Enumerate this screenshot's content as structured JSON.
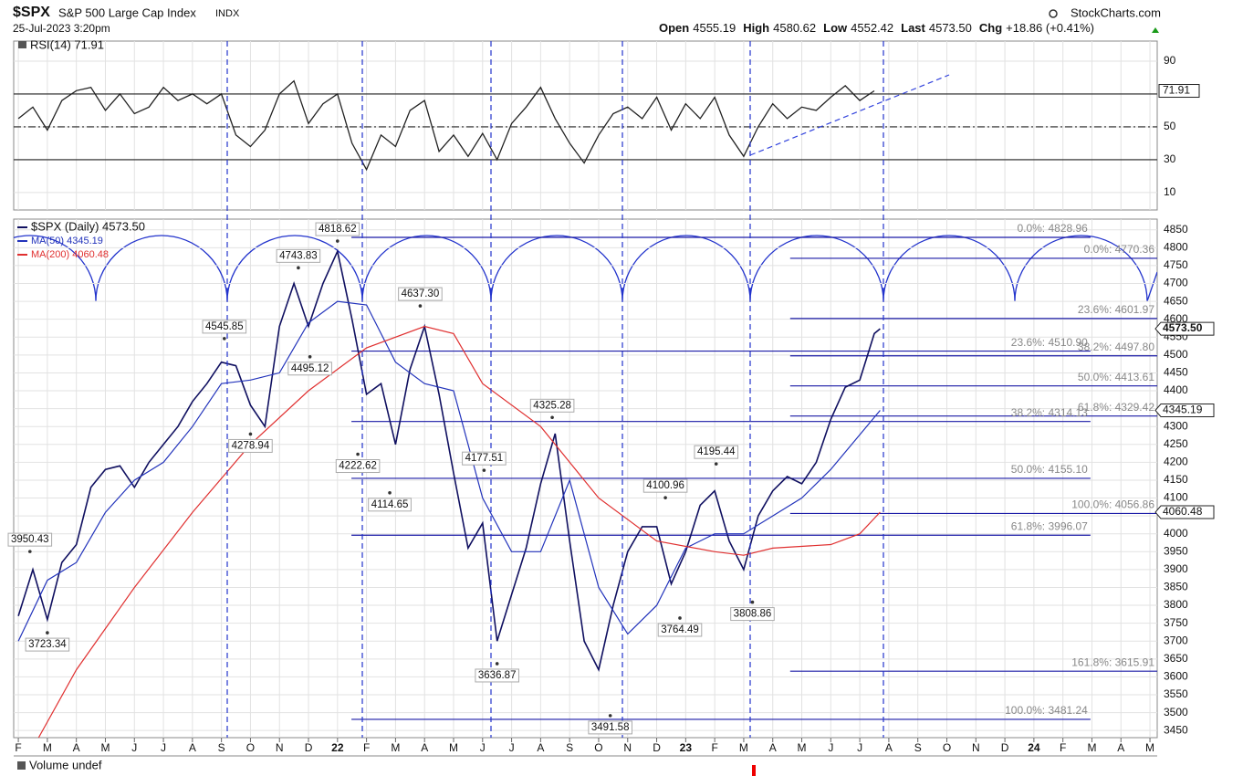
{
  "header": {
    "symbol": "$SPX",
    "name": "S&P 500 Large Cap Index",
    "exchange": "INDX",
    "source": "StockCharts.com",
    "timestamp": "25-Jul-2023 3:20pm",
    "quote": [
      {
        "label": "Open",
        "value": "4555.19"
      },
      {
        "label": "High",
        "value": "4580.62"
      },
      {
        "label": "Low",
        "value": "4552.42"
      },
      {
        "label": "Last",
        "value": "4573.50"
      },
      {
        "label": "Chg",
        "value": "+18.86 (+0.41%)"
      }
    ],
    "volume_label": "Volume undef"
  },
  "chart_data": [
    {
      "type": "line",
      "title": "RSI(14) 71.91",
      "color": "#222222",
      "x": [
        0,
        0.5,
        1,
        1.5,
        2,
        2.5,
        3,
        3.5,
        4,
        4.5,
        5,
        5.5,
        6,
        6.5,
        7,
        7.5,
        8,
        8.5,
        9,
        9.5,
        10,
        10.5,
        11,
        11.5,
        12,
        12.5,
        13,
        13.5,
        14,
        14.5,
        15,
        15.5,
        16,
        16.5,
        17,
        17.5,
        18,
        18.5,
        19,
        19.5,
        20,
        20.5,
        21,
        21.5,
        22,
        22.5,
        23,
        23.5,
        24,
        24.5,
        25,
        25.5,
        26,
        26.5,
        27,
        27.5,
        28,
        28.5,
        29,
        29.5
      ],
      "values": [
        55,
        62,
        48,
        66,
        72,
        74,
        60,
        70,
        58,
        62,
        74,
        66,
        70,
        64,
        70,
        45,
        38,
        48,
        70,
        78,
        52,
        64,
        70,
        40,
        24,
        45,
        38,
        60,
        66,
        35,
        45,
        32,
        46,
        30,
        52,
        62,
        74,
        55,
        40,
        28,
        45,
        58,
        62,
        55,
        68,
        48,
        64,
        55,
        68,
        45,
        32,
        50,
        64,
        55,
        62,
        60,
        68,
        75,
        66,
        71.91
      ],
      "xlim": [
        -0.16,
        39.25
      ],
      "ylim": [
        -0.6,
        102.2
      ],
      "yticks": [
        10,
        30,
        50,
        90
      ],
      "levels": [
        70,
        50,
        30
      ],
      "last_label": {
        "value": 71.91,
        "label": "71.91"
      }
    },
    {
      "type": "line",
      "legend": "top-left",
      "grid": true,
      "series": [
        {
          "name": "$SPX (Daily) 4573.50",
          "color": "#101060",
          "x": [
            0,
            0.5,
            1,
            1.5,
            2,
            2.5,
            3,
            3.5,
            4,
            4.5,
            5,
            5.5,
            6,
            6.5,
            7,
            7.5,
            8,
            8.5,
            9,
            9.5,
            10,
            10.5,
            11,
            11.5,
            12,
            12.5,
            13,
            13.5,
            14,
            14.5,
            15,
            15.5,
            16,
            16.5,
            17,
            17.5,
            18,
            18.5,
            19,
            19.5,
            20,
            20.5,
            21,
            21.5,
            22,
            22.5,
            23,
            23.5,
            24,
            24.5,
            25,
            25.5,
            26,
            26.5,
            27,
            27.5,
            28,
            28.5,
            29,
            29.5,
            29.7
          ],
          "values": [
            3770,
            3900,
            3760,
            3920,
            3970,
            4130,
            4180,
            4190,
            4130,
            4200,
            4250,
            4300,
            4370,
            4420,
            4480,
            4470,
            4360,
            4300,
            4580,
            4700,
            4580,
            4700,
            4790,
            4600,
            4390,
            4420,
            4250,
            4460,
            4580,
            4390,
            4170,
            3960,
            4030,
            3700,
            3830,
            3960,
            4140,
            4280,
            3980,
            3700,
            3620,
            3800,
            3950,
            4020,
            4020,
            3860,
            3950,
            4080,
            4120,
            3980,
            3900,
            4050,
            4120,
            4160,
            4140,
            4200,
            4320,
            4410,
            4430,
            4560,
            4573.5
          ]
        },
        {
          "name": "MA(50) 4345.19",
          "color": "#2233bb",
          "x": [
            0,
            1,
            2,
            3,
            4,
            5,
            6,
            7,
            8,
            9,
            10,
            11,
            12,
            13,
            14,
            15,
            16,
            17,
            18,
            19,
            20,
            21,
            22,
            23,
            24,
            25,
            26,
            27,
            28,
            29.7
          ],
          "values": [
            3700,
            3870,
            3920,
            4060,
            4150,
            4200,
            4300,
            4420,
            4430,
            4450,
            4590,
            4650,
            4640,
            4480,
            4420,
            4400,
            4100,
            3950,
            3950,
            4150,
            3850,
            3720,
            3800,
            3960,
            4000,
            4000,
            4050,
            4100,
            4180,
            4345.19
          ]
        },
        {
          "name": "MA(200) 4060.48",
          "color": "#e03030",
          "x": [
            0.7,
            2,
            4,
            6,
            8,
            10,
            12,
            14,
            15,
            16,
            18,
            20,
            22,
            24,
            25,
            26,
            28,
            29,
            29.7
          ],
          "values": [
            3430,
            3620,
            3850,
            4060,
            4250,
            4400,
            4520,
            4580,
            4560,
            4420,
            4300,
            4100,
            3980,
            3950,
            3940,
            3960,
            3970,
            4000,
            4060.48
          ]
        }
      ],
      "xlim": [
        -0.16,
        39.25
      ],
      "ylim": [
        3430,
        4880
      ],
      "yticks": [
        4850,
        4800,
        4750,
        4700,
        4650,
        4600,
        4550,
        4500,
        4450,
        4400,
        4350,
        4300,
        4250,
        4200,
        4150,
        4100,
        4050,
        4000,
        3950,
        3900,
        3850,
        3800,
        3750,
        3700,
        3650,
        3600,
        3550,
        3500,
        3450
      ],
      "xticks": [
        {
          "value": 0,
          "label": "F"
        },
        {
          "value": 1,
          "label": "M"
        },
        {
          "value": 2,
          "label": "A"
        },
        {
          "value": 3,
          "label": "M"
        },
        {
          "value": 4,
          "label": "J"
        },
        {
          "value": 5,
          "label": "J"
        },
        {
          "value": 6,
          "label": "A"
        },
        {
          "value": 7,
          "label": "S"
        },
        {
          "value": 8,
          "label": "O"
        },
        {
          "value": 9,
          "label": "N"
        },
        {
          "value": 10,
          "label": "D"
        },
        {
          "value": 11,
          "label": "22"
        },
        {
          "value": 12,
          "label": "F"
        },
        {
          "value": 13,
          "label": "M"
        },
        {
          "value": 14,
          "label": "A"
        },
        {
          "value": 15,
          "label": "M"
        },
        {
          "value": 16,
          "label": "J"
        },
        {
          "value": 17,
          "label": "J"
        },
        {
          "value": 18,
          "label": "A"
        },
        {
          "value": 19,
          "label": "S"
        },
        {
          "value": 20,
          "label": "O"
        },
        {
          "value": 21,
          "label": "N"
        },
        {
          "value": 22,
          "label": "D"
        },
        {
          "value": 23,
          "label": "23"
        },
        {
          "value": 24,
          "label": "F"
        },
        {
          "value": 25,
          "label": "M"
        },
        {
          "value": 26,
          "label": "A"
        },
        {
          "value": 27,
          "label": "M"
        },
        {
          "value": 28,
          "label": "J"
        },
        {
          "value": 29,
          "label": "J"
        },
        {
          "value": 30,
          "label": "A"
        },
        {
          "value": 31,
          "label": "S"
        },
        {
          "value": 32,
          "label": "O"
        },
        {
          "value": 33,
          "label": "N"
        },
        {
          "value": 34,
          "label": "D"
        },
        {
          "value": 35,
          "label": "24"
        },
        {
          "value": 36,
          "label": "F"
        },
        {
          "value": 37,
          "label": "M"
        },
        {
          "value": 38,
          "label": "A"
        },
        {
          "value": 39,
          "label": "M"
        }
      ],
      "annotations": [
        {
          "x": 0.4,
          "value": 3950.43,
          "label": "3950.43"
        },
        {
          "x": 1.0,
          "value": 3723.34,
          "label": "3723.34"
        },
        {
          "x": 7.1,
          "value": 4545.85,
          "label": "4545.85"
        },
        {
          "x": 8.0,
          "value": 4278.94,
          "label": "4278.94"
        },
        {
          "x": 9.65,
          "value": 4743.83,
          "label": "4743.83"
        },
        {
          "x": 10.05,
          "value": 4495.12,
          "label": "4495.12"
        },
        {
          "x": 11.0,
          "value": 4818.62,
          "label": "4818.62"
        },
        {
          "x": 11.7,
          "value": 4222.62,
          "label": "4222.62"
        },
        {
          "x": 12.8,
          "value": 4114.65,
          "label": "4114.65"
        },
        {
          "x": 13.85,
          "value": 4637.3,
          "label": "4637.30"
        },
        {
          "x": 16.05,
          "value": 4177.51,
          "label": "4177.51"
        },
        {
          "x": 16.5,
          "value": 3636.87,
          "label": "3636.87"
        },
        {
          "x": 18.4,
          "value": 4325.28,
          "label": "4325.28"
        },
        {
          "x": 20.4,
          "value": 3491.58,
          "label": "3491.58"
        },
        {
          "x": 22.3,
          "value": 4100.96,
          "label": "4100.96"
        },
        {
          "x": 22.8,
          "value": 3764.49,
          "label": "3764.49"
        },
        {
          "x": 24.05,
          "value": 4195.44,
          "label": "4195.44"
        },
        {
          "x": 25.3,
          "value": 3808.86,
          "label": "3808.86"
        }
      ],
      "fibonacci": [
        {
          "xspan": [
            11.48,
            36.95
          ],
          "levels": [
            {
              "value": 4828.96,
              "label": "0.0%: 4828.96"
            },
            {
              "value": 4510.9,
              "label": "23.6%: 4510.90"
            },
            {
              "value": 4314.13,
              "label": "38.2%: 4314.13"
            },
            {
              "value": 4155.1,
              "label": "50.0%: 4155.10"
            },
            {
              "value": 3996.07,
              "label": "61.8%: 3996.07"
            },
            {
              "value": 3481.24,
              "label": "100.0%: 3481.24"
            }
          ]
        },
        {
          "xspan": [
            26.6,
            39.25
          ],
          "levels": [
            {
              "value": 4770.36,
              "label": "0.0%: 4770.36"
            },
            {
              "value": 4601.97,
              "label": "23.6%: 4601.97"
            },
            {
              "value": 4497.8,
              "label": "38.2%: 4497.80"
            },
            {
              "value": 4413.61,
              "label": "50.0%: 4413.61"
            },
            {
              "value": 4329.42,
              "label": "61.8%: 4329.42"
            },
            {
              "value": 4056.86,
              "label": "100.0%: 4056.86"
            },
            {
              "value": 3615.91,
              "label": "161.8%: 3615.91"
            }
          ]
        }
      ],
      "last_labels": [
        {
          "value": 4573.5,
          "label": "4573.50"
        },
        {
          "value": 4345.19,
          "label": "4345.19"
        },
        {
          "value": 4060.48,
          "label": "4060.48"
        }
      ]
    }
  ]
}
